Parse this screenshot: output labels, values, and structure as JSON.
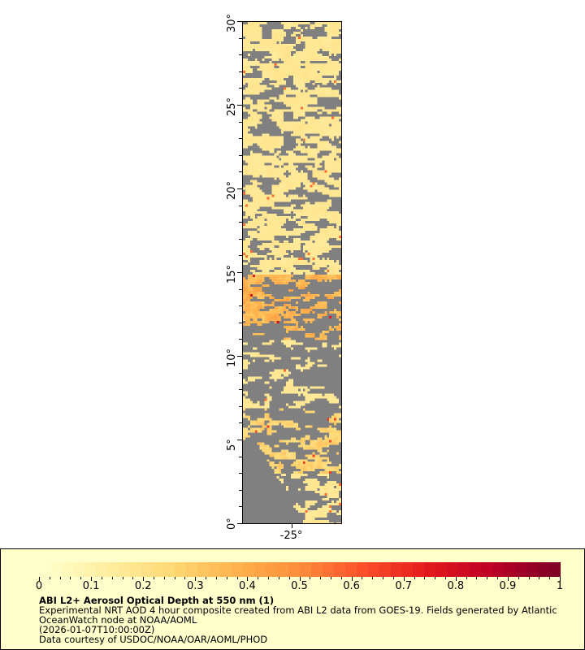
{
  "map": {
    "lat_range": [
      0,
      30
    ],
    "lon_range": [
      -28,
      -22
    ],
    "lat_labels": [
      "0°",
      "5°",
      "10°",
      "15°",
      "20°",
      "25°",
      "30°"
    ],
    "lon_labels": [
      "-25°"
    ],
    "no_data_color": "#808080"
  },
  "legend": {
    "colorbar_min": 0,
    "colorbar_max": 1,
    "tick_labels": [
      "0",
      "0.1",
      "0.2",
      "0.3",
      "0.4",
      "0.5",
      "0.6",
      "0.7",
      "0.8",
      "0.9",
      "1"
    ],
    "title": "ABI L2+ Aerosol Optical Depth at 550 nm (1)",
    "line1": "Experimental NRT AOD 4 hour composite created from ABI L2 data from GOES-19. Fields generated by Atlantic",
    "line2": "OceanWatch node at NOAA/AOML",
    "line3": "(2026-01-07T10:00:00Z)",
    "line4": "Data courtesy of USDOC/NOAA/OAR/AOML/PHOD",
    "colormap": [
      "#ffffcc",
      "#ffeda0",
      "#fed976",
      "#feb24c",
      "#fd8d3c",
      "#fc4e2a",
      "#e31a1c",
      "#bd0026",
      "#800026"
    ]
  }
}
